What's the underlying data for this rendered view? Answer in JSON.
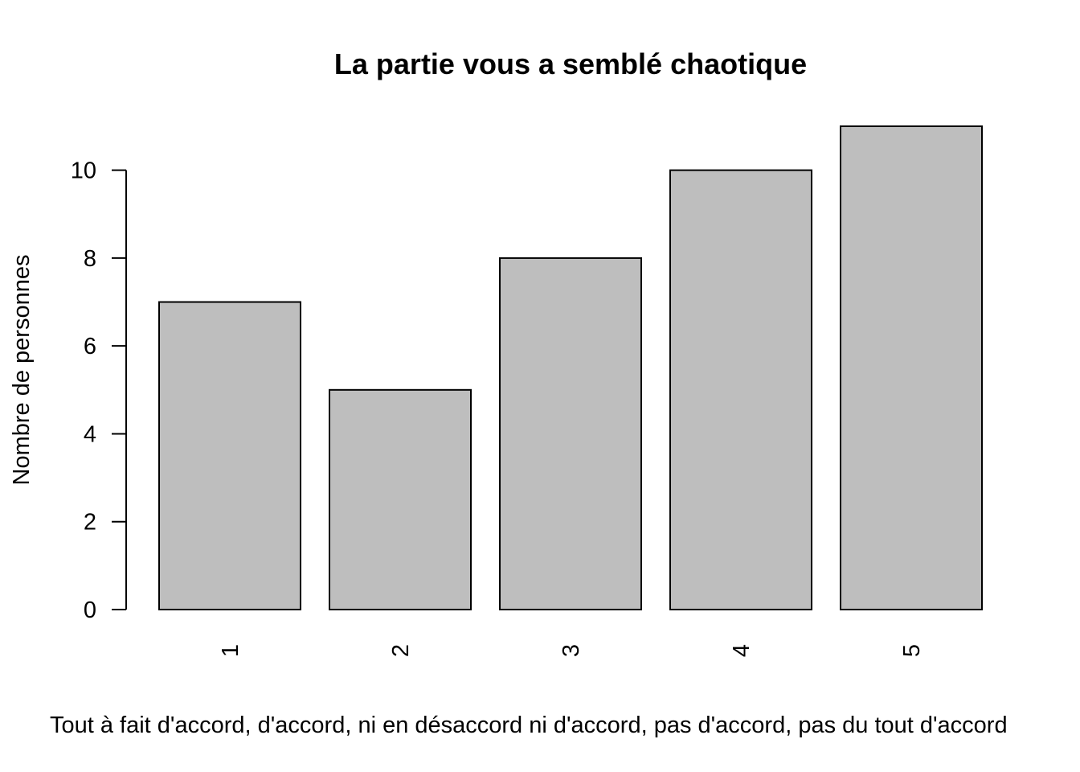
{
  "chart_data": {
    "type": "bar",
    "title": "La partie vous a semblé chaotique",
    "xlabel": "Tout à fait d'accord, d'accord, ni en désaccord ni d'accord, pas d'accord, pas du tout d'accord",
    "ylabel": "Nombre de personnes",
    "categories": [
      "1",
      "2",
      "3",
      "4",
      "5"
    ],
    "values": [
      7,
      5,
      8,
      10,
      11
    ],
    "ylim": [
      0,
      11
    ],
    "yticks": [
      0,
      2,
      4,
      6,
      8,
      10
    ],
    "bar_color": "#bebebe",
    "grid": false,
    "legend": "none"
  }
}
